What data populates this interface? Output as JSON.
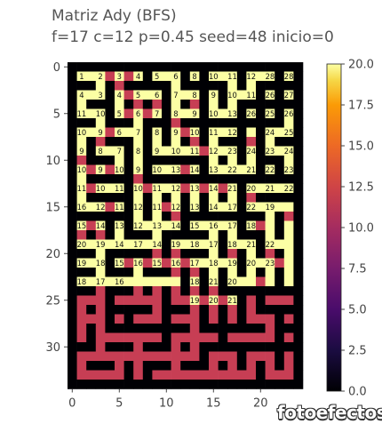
{
  "chart_data": {
    "type": "heatmap",
    "title": "Matriz Ady (BFS)",
    "subtitle": "f=17 c=12 p=0.45 seed=48 inicio=0",
    "xlim": [
      -0.5,
      24.5
    ],
    "ylim": [
      34.5,
      -0.5
    ],
    "xticks": [
      0,
      5,
      10,
      15,
      20
    ],
    "yticks": [
      0,
      5,
      10,
      15,
      20,
      25,
      30
    ],
    "colormap": "inferno",
    "colorbar": {
      "range": [
        0,
        20
      ],
      "ticks": [
        "0.0",
        "2.5",
        "5.0",
        "7.5",
        "10.0",
        "12.5",
        "15.0",
        "17.5",
        "20.0"
      ]
    },
    "colors": {
      "wall": "#000004",
      "free_unvisited": "#c73e54",
      "max": "#fcffa4"
    },
    "grid": [
      "#########################",
      "#1#2#3#4#5#6#8#10#11#12#28#",
      "#########################"
    ],
    "rows": [
      "#########################",
      "#111223344556 88##1011##1112##2828#",
      "#########################"
    ],
    "labels": [
      [
        1,
        1,
        "1"
      ],
      [
        1,
        3,
        "2"
      ],
      [
        1,
        5,
        "3"
      ],
      [
        1,
        7,
        "4"
      ],
      [
        1,
        9,
        "5"
      ],
      [
        1,
        11,
        "6"
      ],
      [
        1,
        13,
        "8"
      ],
      [
        1,
        15,
        "10"
      ],
      [
        1,
        17,
        "11"
      ],
      [
        1,
        19,
        "12"
      ],
      [
        1,
        21,
        "28"
      ],
      [
        1,
        23,
        "28"
      ],
      [
        3,
        1,
        "4"
      ],
      [
        3,
        3,
        "3"
      ],
      [
        3,
        5,
        "4"
      ],
      [
        3,
        7,
        "5"
      ],
      [
        3,
        9,
        "6"
      ],
      [
        3,
        11,
        "7"
      ],
      [
        3,
        13,
        "8"
      ],
      [
        3,
        15,
        "9"
      ],
      [
        3,
        17,
        "10"
      ],
      [
        3,
        19,
        "11"
      ],
      [
        3,
        21,
        "26"
      ],
      [
        3,
        23,
        "27"
      ],
      [
        5,
        1,
        "11"
      ],
      [
        5,
        3,
        "10"
      ],
      [
        5,
        5,
        "5"
      ],
      [
        5,
        7,
        "6"
      ],
      [
        5,
        9,
        "7"
      ],
      [
        5,
        11,
        "8"
      ],
      [
        5,
        13,
        "9"
      ],
      [
        5,
        15,
        "10"
      ],
      [
        5,
        17,
        "13"
      ],
      [
        5,
        19,
        "26"
      ],
      [
        5,
        21,
        "25"
      ],
      [
        5,
        23,
        "26"
      ],
      [
        7,
        1,
        "10"
      ],
      [
        7,
        3,
        "9"
      ],
      [
        7,
        5,
        "6"
      ],
      [
        7,
        7,
        "7"
      ],
      [
        7,
        9,
        "8"
      ],
      [
        7,
        11,
        "9"
      ],
      [
        7,
        13,
        "10"
      ],
      [
        7,
        15,
        "11"
      ],
      [
        7,
        17,
        "12"
      ],
      [
        7,
        21,
        "24"
      ],
      [
        7,
        23,
        "25"
      ],
      [
        9,
        1,
        "9"
      ],
      [
        9,
        3,
        "8"
      ],
      [
        9,
        5,
        "7"
      ],
      [
        9,
        7,
        "8"
      ],
      [
        9,
        9,
        "9"
      ],
      [
        9,
        11,
        "10"
      ],
      [
        9,
        13,
        "11"
      ],
      [
        9,
        15,
        "12"
      ],
      [
        9,
        17,
        "23"
      ],
      [
        9,
        19,
        "24"
      ],
      [
        9,
        21,
        "23"
      ],
      [
        9,
        23,
        "24"
      ],
      [
        11,
        1,
        "10"
      ],
      [
        11,
        3,
        "9"
      ],
      [
        11,
        5,
        "10"
      ],
      [
        11,
        7,
        "9"
      ],
      [
        11,
        9,
        "10"
      ],
      [
        11,
        11,
        "13"
      ],
      [
        11,
        13,
        "14"
      ],
      [
        11,
        15,
        "13"
      ],
      [
        11,
        17,
        "22"
      ],
      [
        11,
        19,
        "21"
      ],
      [
        11,
        21,
        "22"
      ],
      [
        11,
        23,
        "23"
      ],
      [
        13,
        1,
        "11"
      ],
      [
        13,
        3,
        "10"
      ],
      [
        13,
        5,
        "11"
      ],
      [
        13,
        7,
        "10"
      ],
      [
        13,
        9,
        "11"
      ],
      [
        13,
        11,
        "12"
      ],
      [
        13,
        13,
        "13"
      ],
      [
        13,
        15,
        "14"
      ],
      [
        13,
        17,
        "21"
      ],
      [
        13,
        19,
        "20"
      ],
      [
        13,
        21,
        "21"
      ],
      [
        13,
        23,
        "22"
      ],
      [
        15,
        1,
        "16"
      ],
      [
        15,
        3,
        "12"
      ],
      [
        15,
        5,
        "11"
      ],
      [
        15,
        7,
        "12"
      ],
      [
        15,
        9,
        "11"
      ],
      [
        15,
        11,
        "12"
      ],
      [
        15,
        13,
        "13"
      ],
      [
        15,
        15,
        "14"
      ],
      [
        15,
        17,
        "17"
      ],
      [
        15,
        19,
        "22"
      ],
      [
        15,
        21,
        "19"
      ],
      [
        17,
        1,
        "15"
      ],
      [
        17,
        3,
        "14"
      ],
      [
        17,
        5,
        "13"
      ],
      [
        17,
        7,
        "12"
      ],
      [
        17,
        9,
        "13"
      ],
      [
        17,
        11,
        "14"
      ],
      [
        17,
        13,
        "15"
      ],
      [
        17,
        15,
        "16"
      ],
      [
        17,
        17,
        "17"
      ],
      [
        17,
        19,
        "18"
      ],
      [
        19,
        1,
        "20"
      ],
      [
        19,
        3,
        "19"
      ],
      [
        19,
        5,
        "14"
      ],
      [
        19,
        7,
        "17"
      ],
      [
        19,
        9,
        "14"
      ],
      [
        19,
        11,
        "19"
      ],
      [
        19,
        13,
        "18"
      ],
      [
        19,
        15,
        "17"
      ],
      [
        19,
        17,
        "18"
      ],
      [
        19,
        19,
        "21"
      ],
      [
        19,
        21,
        "22"
      ],
      [
        21,
        1,
        "19"
      ],
      [
        21,
        3,
        "18"
      ],
      [
        21,
        5,
        "15"
      ],
      [
        21,
        7,
        "16"
      ],
      [
        21,
        9,
        "15"
      ],
      [
        21,
        11,
        "16"
      ],
      [
        21,
        13,
        "17"
      ],
      [
        21,
        15,
        "18"
      ],
      [
        21,
        17,
        "19"
      ],
      [
        21,
        19,
        "20"
      ],
      [
        21,
        21,
        "23"
      ],
      [
        23,
        1,
        "18"
      ],
      [
        23,
        3,
        "17"
      ],
      [
        23,
        5,
        "16"
      ],
      [
        23,
        13,
        "18"
      ],
      [
        23,
        15,
        "21"
      ],
      [
        23,
        17,
        "20"
      ],
      [
        25,
        13,
        "19"
      ],
      [
        25,
        15,
        "20"
      ],
      [
        25,
        17,
        "21"
      ]
    ]
  },
  "watermark": "fotoefectos"
}
